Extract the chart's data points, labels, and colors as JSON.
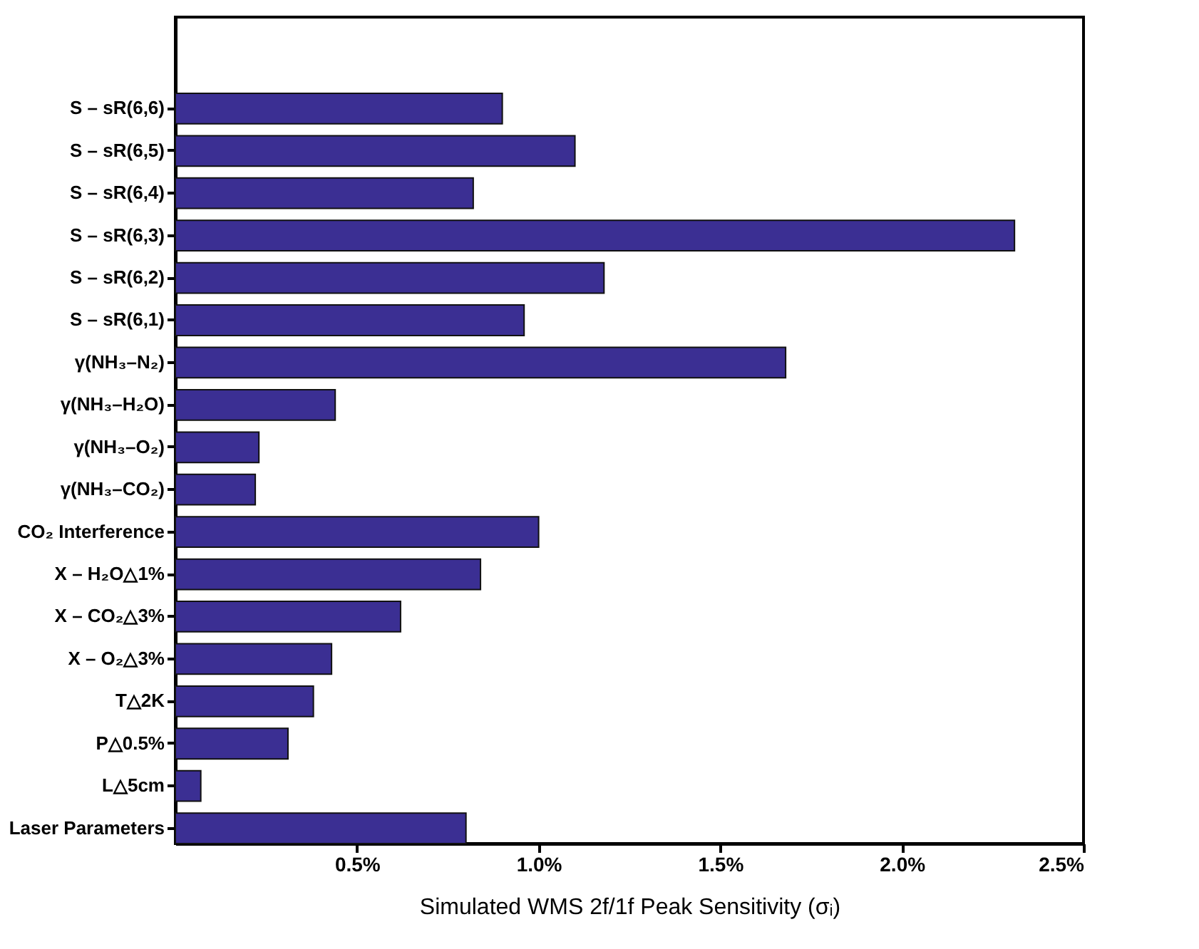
{
  "chart_data": {
    "type": "bar",
    "orientation": "horizontal",
    "xlabel": "Simulated WMS 2f/1f Peak Sensitivity (σᵢ)",
    "categories": [
      "S – sR(6,6)",
      "S – sR(6,5)",
      "S – sR(6,4)",
      "S – sR(6,3)",
      "S – sR(6,2)",
      "S – sR(6,1)",
      "γ(NH₃–N₂)",
      "γ(NH₃–H₂O)",
      "γ(NH₃–O₂)",
      "γ(NH₃–CO₂)",
      "CO₂ Interference",
      "X – H₂O△1%",
      "X – CO₂△3%",
      "X – O₂△3%",
      "T△2K",
      "P△0.5%",
      "L△5cm",
      "Laser Parameters"
    ],
    "values": [
      0.9,
      1.1,
      0.82,
      2.31,
      1.18,
      0.96,
      1.68,
      0.44,
      0.23,
      0.22,
      1.0,
      0.84,
      0.62,
      0.43,
      0.38,
      0.31,
      0.07,
      0.8
    ],
    "color": "#3b2f93",
    "xlim": [
      0,
      2.5
    ],
    "xticks": [
      {
        "value": 0.5,
        "label": "0.5%"
      },
      {
        "value": 1.0,
        "label": "1.0%"
      },
      {
        "value": 1.5,
        "label": "1.5%"
      },
      {
        "value": 2.0,
        "label": "2.0%"
      },
      {
        "value": 2.5,
        "label": "2.5%"
      }
    ],
    "grid": false
  }
}
